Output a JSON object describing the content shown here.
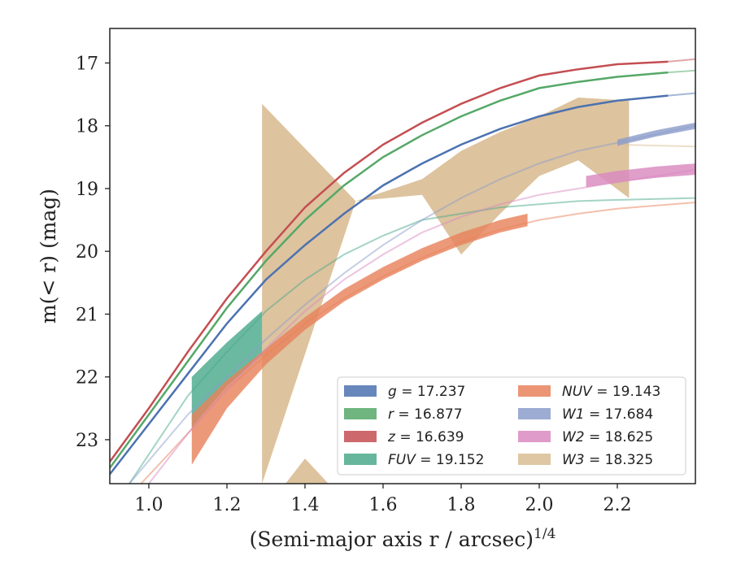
{
  "chart_data": {
    "type": "line",
    "xlabel_main": "(Semi-major axis r / arcsec)",
    "xlabel_sup": "1/4",
    "ylabel": "m(< r) (mag)",
    "xlim": [
      0.9,
      2.4
    ],
    "ylim": [
      23.7,
      16.45
    ],
    "y_inverted": true,
    "x_ticks": [
      1.0,
      1.2,
      1.4,
      1.6,
      1.8,
      2.0,
      2.2
    ],
    "x_tick_labels": [
      "1.0",
      "1.2",
      "1.4",
      "1.6",
      "1.8",
      "2.0",
      "2.2"
    ],
    "y_ticks": [
      17,
      18,
      19,
      20,
      21,
      22,
      23
    ],
    "y_tick_labels": [
      "17",
      "18",
      "19",
      "20",
      "21",
      "22",
      "23"
    ],
    "grid": false,
    "legend_position": "lower-right",
    "series": [
      {
        "name": "g = 17.237",
        "label": "g",
        "value": "17.237",
        "color": "#4c72b0",
        "kind": "curve",
        "x": [
          0.9,
          1.0,
          1.1,
          1.2,
          1.3,
          1.4,
          1.5,
          1.6,
          1.7,
          1.8,
          1.9,
          2.0,
          2.1,
          2.2,
          2.33
        ],
        "y": [
          23.55,
          22.75,
          21.95,
          21.15,
          20.45,
          19.9,
          19.4,
          18.95,
          18.6,
          18.3,
          18.05,
          17.85,
          17.7,
          17.6,
          17.52
        ],
        "ext_x": [
          2.33,
          2.4
        ],
        "ext_y": [
          17.52,
          17.48
        ]
      },
      {
        "name": "r = 16.877",
        "label": "r",
        "value": "16.877",
        "color": "#55a868",
        "kind": "curve",
        "x": [
          0.9,
          1.0,
          1.1,
          1.2,
          1.3,
          1.4,
          1.5,
          1.6,
          1.7,
          1.8,
          1.9,
          2.0,
          2.1,
          2.2,
          2.33
        ],
        "y": [
          23.45,
          22.6,
          21.75,
          20.9,
          20.15,
          19.5,
          18.95,
          18.5,
          18.15,
          17.85,
          17.6,
          17.4,
          17.3,
          17.22,
          17.15
        ],
        "ext_x": [
          2.33,
          2.4
        ],
        "ext_y": [
          17.15,
          17.12
        ]
      },
      {
        "name": "z = 16.639",
        "label": "z",
        "value": "16.639",
        "color": "#c44e52",
        "kind": "curve",
        "x": [
          0.9,
          1.0,
          1.1,
          1.2,
          1.3,
          1.4,
          1.5,
          1.6,
          1.7,
          1.8,
          1.9,
          2.0,
          2.1,
          2.2,
          2.33
        ],
        "y": [
          23.35,
          22.5,
          21.6,
          20.75,
          20.0,
          19.3,
          18.75,
          18.3,
          17.95,
          17.65,
          17.4,
          17.2,
          17.1,
          17.02,
          16.98
        ],
        "ext_x": [
          2.33,
          2.4
        ],
        "ext_y": [
          16.98,
          16.94
        ]
      },
      {
        "name": "FUV = 19.152",
        "label": "FUV",
        "value": "19.152",
        "color": "#4aa98b",
        "kind": "band",
        "x": [
          1.11,
          1.2,
          1.29
        ],
        "y_low": [
          22.8,
          22.15,
          21.65
        ],
        "y_high": [
          22.0,
          21.45,
          20.95
        ],
        "ext_x": [
          0.95,
          1.1,
          1.2,
          1.3,
          1.4,
          1.5,
          1.6,
          1.7,
          1.8,
          1.9,
          2.0,
          2.1,
          2.2,
          2.4
        ],
        "ext_y": [
          23.7,
          22.3,
          21.6,
          20.95,
          20.45,
          20.05,
          19.75,
          19.5,
          19.4,
          19.3,
          19.25,
          19.2,
          19.18,
          19.15
        ]
      },
      {
        "name": "NUV = 19.143",
        "label": "NUV",
        "value": "19.143",
        "color": "#e8825c",
        "kind": "band",
        "x": [
          1.11,
          1.2,
          1.3,
          1.4,
          1.5,
          1.6,
          1.7,
          1.8,
          1.9,
          1.97
        ],
        "y_low": [
          23.4,
          22.5,
          21.8,
          21.25,
          20.8,
          20.45,
          20.15,
          19.9,
          19.7,
          19.6
        ],
        "y_high": [
          22.6,
          22.05,
          21.55,
          21.05,
          20.6,
          20.25,
          19.95,
          19.7,
          19.5,
          19.4
        ],
        "ext_x": [
          0.98,
          1.1,
          1.2,
          1.3,
          1.4,
          1.5,
          1.6,
          1.7,
          1.8,
          1.9,
          2.0,
          2.1,
          2.2,
          2.4
        ],
        "ext_y": [
          23.7,
          22.9,
          22.2,
          21.65,
          21.15,
          20.75,
          20.4,
          20.1,
          19.85,
          19.65,
          19.5,
          19.4,
          19.32,
          19.22
        ]
      },
      {
        "name": "W1 = 17.684",
        "label": "W1",
        "value": "17.684",
        "color": "#8c9ecb",
        "kind": "band",
        "x": [
          2.2,
          2.3,
          2.4
        ],
        "y_low": [
          18.32,
          18.17,
          18.05
        ],
        "y_high": [
          18.22,
          18.07,
          17.95
        ],
        "ext_x": [
          0.95,
          1.1,
          1.2,
          1.3,
          1.4,
          1.5,
          1.6,
          1.7,
          1.8,
          1.9,
          2.0,
          2.1,
          2.2,
          2.4
        ],
        "ext_y": [
          23.7,
          22.6,
          22.0,
          21.4,
          20.85,
          20.35,
          19.9,
          19.5,
          19.15,
          18.85,
          18.6,
          18.4,
          18.27,
          18.0
        ]
      },
      {
        "name": "W2 = 18.625",
        "label": "W2",
        "value": "18.625",
        "color": "#d989c0",
        "kind": "band",
        "x": [
          2.12,
          2.2,
          2.3,
          2.4
        ],
        "y_low": [
          18.98,
          18.9,
          18.83,
          18.78
        ],
        "y_high": [
          18.8,
          18.72,
          18.65,
          18.6
        ],
        "ext_x": [
          1.0,
          1.1,
          1.2,
          1.3,
          1.4,
          1.5,
          1.6,
          1.7,
          1.8,
          1.9,
          2.0,
          2.1,
          2.2,
          2.4
        ],
        "ext_y": [
          23.7,
          22.9,
          22.2,
          21.55,
          20.95,
          20.45,
          20.05,
          19.7,
          19.45,
          19.25,
          19.1,
          19.0,
          18.9,
          18.7
        ]
      },
      {
        "name": "W3 = 18.325",
        "label": "W3",
        "value": "18.325",
        "color": "#d9bd93",
        "kind": "band",
        "x": [
          1.29,
          1.53,
          1.7,
          1.8,
          1.9,
          2.0,
          2.1,
          2.23
        ],
        "y_low": [
          23.7,
          19.2,
          19.1,
          20.05,
          19.4,
          18.8,
          18.55,
          19.15
        ],
        "y_high": [
          17.65,
          19.2,
          18.85,
          18.4,
          18.1,
          17.85,
          17.55,
          17.6
        ],
        "tail_x": [
          1.46,
          1.4,
          1.35
        ],
        "tail_y": [
          23.7,
          23.3,
          23.7
        ],
        "ext_x": [
          2.2,
          2.4
        ],
        "ext_y": [
          18.3,
          18.33
        ]
      }
    ]
  }
}
